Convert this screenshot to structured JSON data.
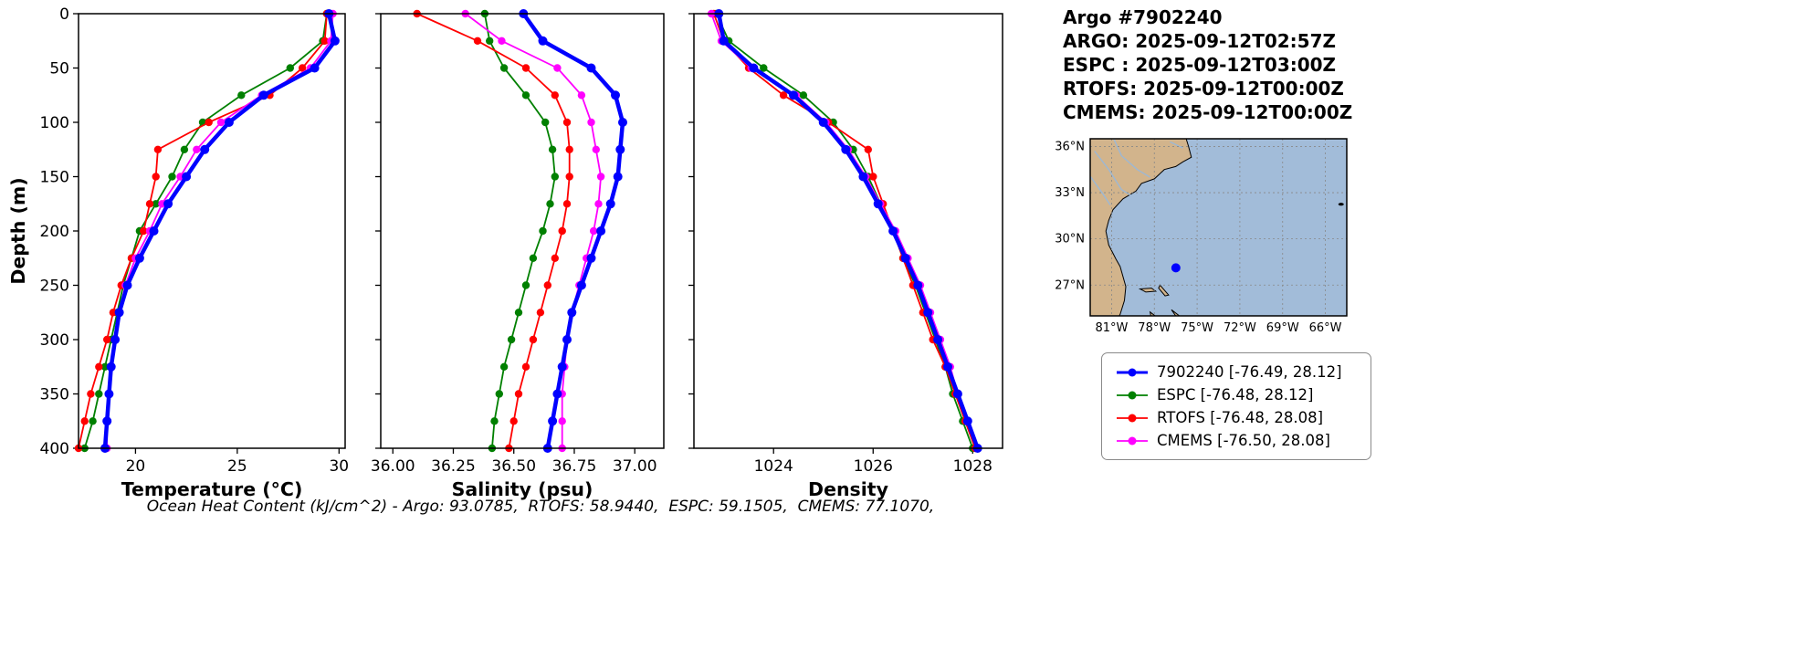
{
  "info_block": {
    "lines": [
      "Argo #7902240",
      "ARGO: 2025-09-12T02:57Z",
      "ESPC : 2025-09-12T03:00Z",
      "RTOFS: 2025-09-12T00:00Z",
      "CMEMS: 2025-09-12T00:00Z"
    ]
  },
  "caption": "Ocean Heat Content (kJ/cm^2) - Argo: 93.0785,  RTOFS: 58.9440,  ESPC: 59.1505,  CMEMS: 77.1070,",
  "depth_axis": {
    "label": "Depth (m)",
    "range": [
      0,
      400
    ],
    "ticks": [
      0,
      50,
      100,
      150,
      200,
      250,
      300,
      350,
      400
    ]
  },
  "depths": [
    0,
    25,
    50,
    75,
    100,
    125,
    150,
    175,
    200,
    225,
    250,
    275,
    300,
    325,
    350,
    375,
    400
  ],
  "chart_data": [
    {
      "type": "line",
      "xlabel": "Temperature (°C)",
      "ylabel": "Depth (m)",
      "xlim": [
        17.2,
        30.3
      ],
      "xticks": [
        20,
        25,
        30
      ],
      "xtick_labels": [
        "20",
        "25",
        "30"
      ],
      "ylim": [
        0,
        400
      ],
      "y_inverted": true,
      "series": [
        {
          "name": "7902240",
          "color": "#0000ff",
          "line_width": 4.5,
          "values": [
            29.5,
            29.8,
            28.8,
            26.3,
            24.6,
            23.4,
            22.5,
            21.6,
            20.9,
            20.2,
            19.6,
            19.2,
            19.0,
            18.8,
            18.7,
            18.6,
            18.5
          ]
        },
        {
          "name": "ESPC",
          "color": "#008000",
          "line_width": 1.8,
          "values": [
            29.4,
            29.2,
            27.6,
            25.2,
            23.3,
            22.4,
            21.8,
            21.0,
            20.2,
            19.8,
            19.4,
            19.1,
            18.8,
            18.5,
            18.2,
            17.9,
            17.5
          ]
        },
        {
          "name": "RTOFS",
          "color": "#ff0000",
          "line_width": 1.8,
          "values": [
            29.4,
            29.3,
            28.2,
            26.6,
            23.6,
            21.1,
            21.0,
            20.7,
            20.4,
            19.8,
            19.3,
            18.9,
            18.6,
            18.2,
            17.8,
            17.5,
            17.2
          ]
        },
        {
          "name": "CMEMS",
          "color": "#ff00ff",
          "line_width": 1.8,
          "values": [
            29.7,
            29.6,
            28.6,
            26.2,
            24.2,
            23.0,
            22.2,
            21.3,
            20.7,
            20.0,
            19.5,
            19.2,
            19.0,
            18.8,
            18.7,
            18.6,
            18.6
          ]
        }
      ]
    },
    {
      "type": "line",
      "xlabel": "Salinity (psu)",
      "ylabel": "Depth (m)",
      "xlim": [
        35.95,
        37.12
      ],
      "xticks": [
        36.0,
        36.25,
        36.5,
        36.75,
        37.0
      ],
      "xtick_labels": [
        "36.00",
        "36.25",
        "36.50",
        "36.75",
        "37.00"
      ],
      "ylim": [
        0,
        400
      ],
      "y_inverted": true,
      "series": [
        {
          "name": "7902240",
          "color": "#0000ff",
          "line_width": 4.5,
          "values": [
            36.54,
            36.62,
            36.82,
            36.92,
            36.95,
            36.94,
            36.93,
            36.9,
            36.86,
            36.82,
            36.78,
            36.74,
            36.72,
            36.7,
            36.68,
            36.66,
            36.64
          ]
        },
        {
          "name": "ESPC",
          "color": "#008000",
          "line_width": 1.8,
          "values": [
            36.38,
            36.4,
            36.46,
            36.55,
            36.63,
            36.66,
            36.67,
            36.65,
            36.62,
            36.58,
            36.55,
            36.52,
            36.49,
            36.46,
            36.44,
            36.42,
            36.41
          ]
        },
        {
          "name": "RTOFS",
          "color": "#ff0000",
          "line_width": 1.8,
          "values": [
            36.1,
            36.35,
            36.55,
            36.67,
            36.72,
            36.73,
            36.73,
            36.72,
            36.7,
            36.67,
            36.64,
            36.61,
            36.58,
            36.55,
            36.52,
            36.5,
            36.48
          ]
        },
        {
          "name": "CMEMS",
          "color": "#ff00ff",
          "line_width": 1.8,
          "values": [
            36.3,
            36.45,
            36.68,
            36.78,
            36.82,
            36.84,
            36.86,
            36.85,
            36.83,
            36.8,
            36.77,
            36.74,
            36.72,
            36.71,
            36.7,
            36.7,
            36.7
          ]
        }
      ]
    },
    {
      "type": "line",
      "xlabel": "Density",
      "ylabel": "Depth (m)",
      "xlim": [
        1022.4,
        1028.6
      ],
      "xticks": [
        1024,
        1026,
        1028
      ],
      "xtick_labels": [
        "1024",
        "1026",
        "1028"
      ],
      "ylim": [
        0,
        400
      ],
      "y_inverted": true,
      "series": [
        {
          "name": "7902240",
          "color": "#0000ff",
          "line_width": 4.5,
          "values": [
            1022.9,
            1023.0,
            1023.6,
            1024.4,
            1025.0,
            1025.45,
            1025.8,
            1026.1,
            1026.4,
            1026.65,
            1026.9,
            1027.1,
            1027.3,
            1027.5,
            1027.7,
            1027.9,
            1028.1
          ]
        },
        {
          "name": "ESPC",
          "color": "#008000",
          "line_width": 1.8,
          "values": [
            1022.85,
            1023.1,
            1023.8,
            1024.6,
            1025.2,
            1025.6,
            1025.9,
            1026.15,
            1026.4,
            1026.6,
            1026.85,
            1027.05,
            1027.25,
            1027.45,
            1027.6,
            1027.8,
            1028.0
          ]
        },
        {
          "name": "RTOFS",
          "color": "#ff0000",
          "line_width": 1.8,
          "values": [
            1022.8,
            1023.0,
            1023.5,
            1024.2,
            1025.1,
            1025.9,
            1026.0,
            1026.2,
            1026.4,
            1026.6,
            1026.8,
            1027.0,
            1027.2,
            1027.45,
            1027.65,
            1027.85,
            1028.05
          ]
        },
        {
          "name": "CMEMS",
          "color": "#ff00ff",
          "line_width": 1.8,
          "values": [
            1022.75,
            1022.95,
            1023.55,
            1024.45,
            1025.05,
            1025.5,
            1025.85,
            1026.15,
            1026.45,
            1026.7,
            1026.95,
            1027.15,
            1027.35,
            1027.55,
            1027.7,
            1027.9,
            1028.1
          ]
        }
      ]
    }
  ],
  "map": {
    "extent": {
      "lon": [
        -82.5,
        -64.5
      ],
      "lat": [
        25.0,
        36.5
      ]
    },
    "lat_ticks": [
      {
        "value": 36,
        "label": "36°N"
      },
      {
        "value": 33,
        "label": "33°N"
      },
      {
        "value": 30,
        "label": "30°N"
      },
      {
        "value": 27,
        "label": "27°N"
      }
    ],
    "lon_ticks": [
      {
        "value": -81,
        "label": "81°W"
      },
      {
        "value": -78,
        "label": "78°W"
      },
      {
        "value": -75,
        "label": "75°W"
      },
      {
        "value": -72,
        "label": "72°W"
      },
      {
        "value": -69,
        "label": "69°W"
      },
      {
        "value": -66,
        "label": "66°W"
      }
    ],
    "marker": {
      "lon": -76.49,
      "lat": 28.12,
      "color": "#0000ff"
    },
    "ocean_color": "#a2bcd9",
    "land_color": "#d2b48c"
  },
  "legend": {
    "items": [
      {
        "label": "7902240 [-76.49, 28.12]",
        "color": "#0000ff",
        "thick": true
      },
      {
        "label": "ESPC [-76.48, 28.12]",
        "color": "#008000",
        "thick": false
      },
      {
        "label": "RTOFS [-76.48, 28.08]",
        "color": "#ff0000",
        "thick": false
      },
      {
        "label": "CMEMS [-76.50, 28.08]",
        "color": "#ff00ff",
        "thick": false
      }
    ]
  }
}
